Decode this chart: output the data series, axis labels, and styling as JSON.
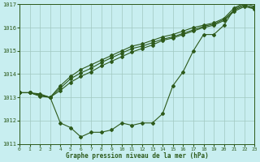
{
  "bg_color": "#c8eef0",
  "line_color": "#2d5a1b",
  "grid_color": "#a0c8c0",
  "xlabel": "Graphe pression niveau de la mer (hPa)",
  "ylim": [
    1011,
    1017
  ],
  "xlim": [
    0,
    23
  ],
  "yticks": [
    1011,
    1012,
    1013,
    1014,
    1015,
    1016,
    1017
  ],
  "xticks": [
    0,
    1,
    2,
    3,
    4,
    5,
    6,
    7,
    8,
    9,
    10,
    11,
    12,
    13,
    14,
    15,
    16,
    17,
    18,
    19,
    20,
    21,
    22,
    23
  ],
  "series1": [
    1013.2,
    1013.2,
    1013.1,
    1013.0,
    1011.9,
    1011.7,
    1011.3,
    1011.5,
    1011.5,
    1011.6,
    1011.9,
    1011.8,
    1011.9,
    1011.9,
    1012.3,
    1013.5,
    1014.1,
    1015.0,
    1015.7,
    1015.7,
    1016.1,
    1016.8,
    1017.0,
    1016.8
  ],
  "series2": [
    1013.2,
    1013.2,
    1013.05,
    1013.0,
    1013.4,
    1013.8,
    1014.05,
    1014.25,
    1014.5,
    1014.7,
    1014.9,
    1015.1,
    1015.2,
    1015.35,
    1015.5,
    1015.6,
    1015.75,
    1015.9,
    1016.05,
    1016.15,
    1016.35,
    1016.75,
    1016.95,
    1016.85
  ],
  "series3": [
    1013.2,
    1013.2,
    1013.1,
    1013.0,
    1013.5,
    1013.9,
    1014.2,
    1014.4,
    1014.6,
    1014.8,
    1015.0,
    1015.2,
    1015.3,
    1015.45,
    1015.6,
    1015.7,
    1015.85,
    1016.0,
    1016.1,
    1016.2,
    1016.4,
    1016.85,
    1017.05,
    1016.9
  ],
  "series4": [
    1013.2,
    1013.2,
    1013.15,
    1013.0,
    1013.3,
    1013.65,
    1013.9,
    1014.1,
    1014.35,
    1014.55,
    1014.75,
    1014.95,
    1015.1,
    1015.25,
    1015.45,
    1015.55,
    1015.7,
    1015.85,
    1016.0,
    1016.1,
    1016.3,
    1016.7,
    1016.9,
    1016.8
  ]
}
